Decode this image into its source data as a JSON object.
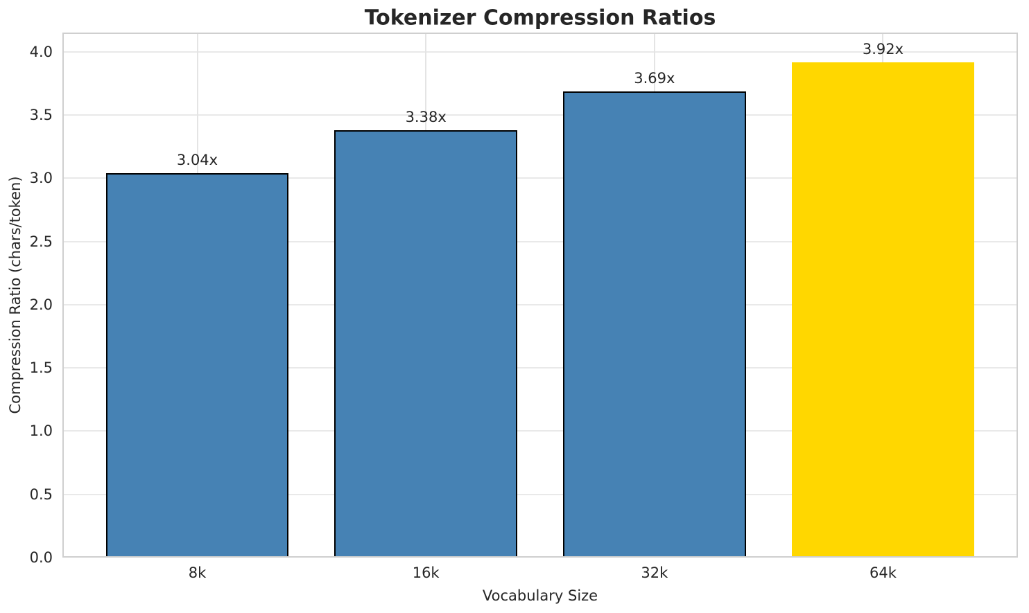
{
  "chart_data": {
    "type": "bar",
    "title": "Tokenizer Compression Ratios",
    "xlabel": "Vocabulary Size",
    "ylabel": "Compression Ratio (chars/token)",
    "categories": [
      "8k",
      "16k",
      "32k",
      "64k"
    ],
    "values": [
      3.04,
      3.38,
      3.69,
      3.92
    ],
    "bar_labels": [
      "3.04x",
      "3.38x",
      "3.69x",
      "3.92x"
    ],
    "bar_colors": [
      "#4682B4",
      "#4682B4",
      "#4682B4",
      "#FFD700"
    ],
    "bar_edge_colors": [
      "#000000",
      "#000000",
      "#000000",
      "#FFD700"
    ],
    "highlight_index": 3,
    "yticks": [
      0.0,
      0.5,
      1.0,
      1.5,
      2.0,
      2.5,
      3.0,
      3.5,
      4.0
    ],
    "ytick_labels": [
      "0.0",
      "0.5",
      "1.0",
      "1.5",
      "2.0",
      "2.5",
      "3.0",
      "3.5",
      "4.0"
    ],
    "ylim": [
      0,
      4.15
    ],
    "grid": true,
    "legend": false
  },
  "colors": {
    "background": "#ffffff",
    "text": "#262626",
    "grid": "#e9e9e9",
    "spine": "#cfcfcf",
    "bar_blue": "#4682B4",
    "bar_gold": "#FFD700",
    "bar_edge": "#000000"
  }
}
